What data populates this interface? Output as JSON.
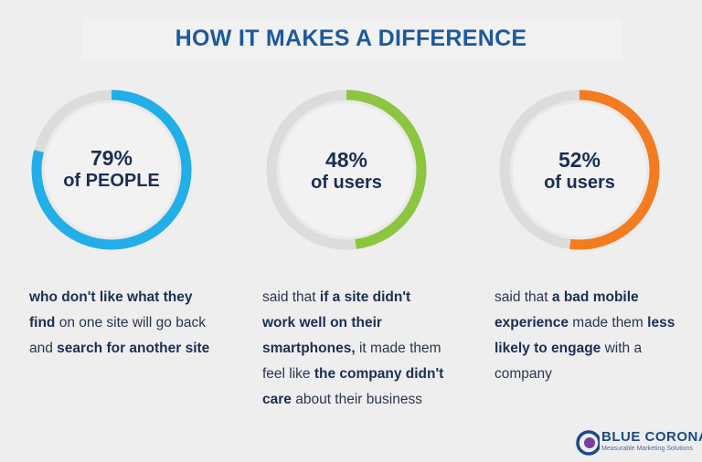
{
  "title": "HOW IT MAKES A DIFFERENCE",
  "stats": [
    {
      "value": "79%",
      "label": "of PEOPLE",
      "color": "#22aee8",
      "fill_fraction": 0.79,
      "description": [
        {
          "t": "who don't like what they find",
          "b": true
        },
        {
          "t": " on one site will go back and ",
          "b": false
        },
        {
          "t": "search for another site",
          "b": true
        }
      ]
    },
    {
      "value": "48%",
      "label": "of users",
      "color": "#8cc63f",
      "fill_fraction": 0.48,
      "description": [
        {
          "t": "said that ",
          "b": false
        },
        {
          "t": "if a site didn't work well on their smartphones,",
          "b": true
        },
        {
          "t": " it made them feel like ",
          "b": false
        },
        {
          "t": "the company didn't care",
          "b": true
        },
        {
          "t": " about their business",
          "b": false
        }
      ]
    },
    {
      "value": "52%",
      "label": "of users",
      "color": "#f47c20",
      "fill_fraction": 0.52,
      "description": [
        {
          "t": "said that ",
          "b": false
        },
        {
          "t": "a bad mobile experience",
          "b": true
        },
        {
          "t": " made them ",
          "b": false
        },
        {
          "t": "less likely to engage",
          "b": true
        },
        {
          "t": " with a company",
          "b": false
        }
      ]
    }
  ],
  "logo": {
    "name": "BLUE CORONA",
    "tagline": "Measurable Marketing Solutions",
    "colors": [
      "#1d4a86",
      "#7b3fa0"
    ]
  }
}
